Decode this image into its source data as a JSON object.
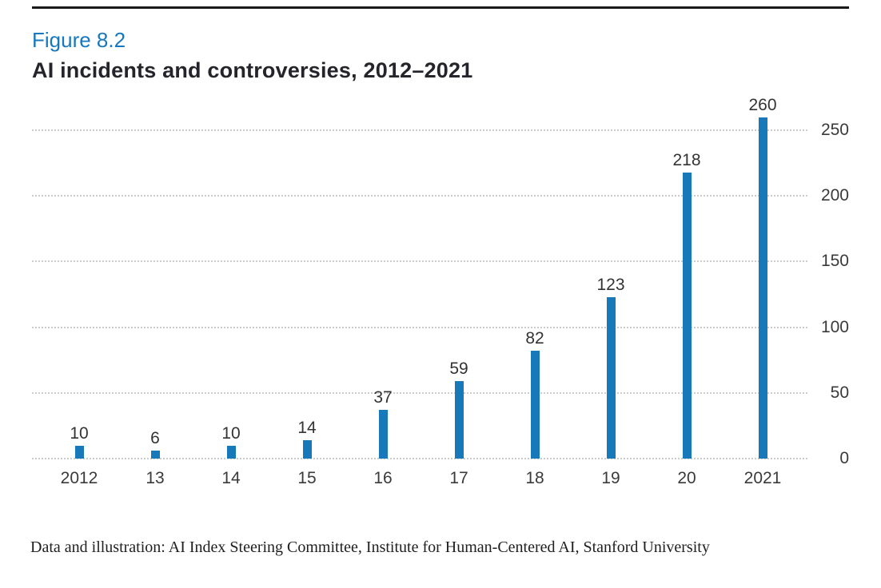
{
  "figure_label": "Figure 8.2",
  "title": "AI incidents and controversies, 2012–2021",
  "source": "Data and illustration: AI Index Steering Committee, Institute for Human-Centered AI, Stanford University",
  "colors": {
    "bar": "#1779ba",
    "figure_label_text": "#1778be",
    "title_text": "#26242b",
    "axis_text": "#3a3a3c",
    "gridline": "#cccccc",
    "top_rule": "#1a1a1a"
  },
  "chart_data": {
    "type": "bar",
    "title": "AI incidents and controversies, 2012–2021",
    "categories": [
      "2012",
      "13",
      "14",
      "15",
      "16",
      "17",
      "18",
      "19",
      "20",
      "2021"
    ],
    "values": [
      10,
      6,
      10,
      14,
      37,
      59,
      82,
      123,
      218,
      260
    ],
    "xlabel": "",
    "ylabel": "",
    "ylim": [
      0,
      250
    ],
    "yticks": [
      0,
      50,
      100,
      150,
      200,
      250
    ],
    "ytick_side": "right",
    "grid": "horizontal-dotted",
    "legend": "none",
    "bar_value_labels": true
  }
}
